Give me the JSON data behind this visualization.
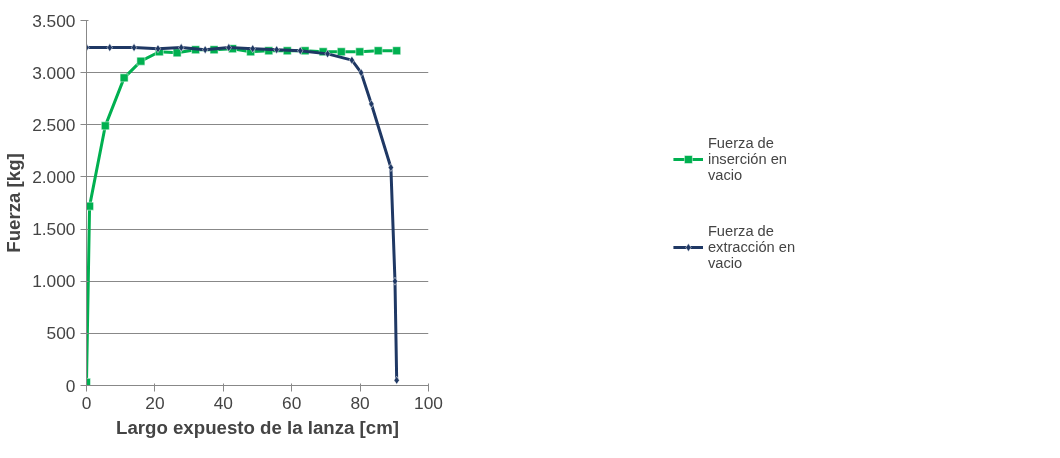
{
  "chart_data": {
    "type": "line",
    "xlabel": "Largo expuesto de la lanza [cm]",
    "ylabel": "Fuerza [kg]",
    "xlim": [
      0,
      100
    ],
    "xticks": [
      0,
      20,
      40,
      60,
      80,
      100
    ],
    "ylim": [
      0,
      3500
    ],
    "yticks": [
      {
        "value": 0,
        "label": "0"
      },
      {
        "value": 500,
        "label": "500"
      },
      {
        "value": 1000,
        "label": "1.000"
      },
      {
        "value": 1500,
        "label": "1.500"
      },
      {
        "value": 2000,
        "label": "2.000"
      },
      {
        "value": 2500,
        "label": "2.500"
      },
      {
        "value": 3000,
        "label": "3.000"
      },
      {
        "value": 3500,
        "label": "3.500"
      }
    ],
    "grid": "y",
    "legend": "right",
    "series": [
      {
        "name": "Fuerza de inserción en vacio",
        "color": "#00b050",
        "marker": "square",
        "x": [
          0,
          0.9,
          5.5,
          11,
          15.9,
          21.3,
          26.5,
          31.9,
          37.3,
          42.7,
          48,
          53.3,
          58.7,
          63.9,
          69.2,
          74.5,
          79.9,
          85.3,
          90.7
        ],
        "values": [
          30,
          1720,
          2490,
          2950,
          3110,
          3200,
          3190,
          3220,
          3220,
          3230,
          3200,
          3210,
          3210,
          3210,
          3200,
          3200,
          3200,
          3210,
          3210
        ]
      },
      {
        "name": "Fuerza de extracción en vacio",
        "color": "#1f3864",
        "marker": "diamond",
        "x": [
          0,
          6.8,
          13.9,
          20.9,
          27.7,
          34.7,
          41.6,
          48.6,
          55.6,
          62.5,
          70.5,
          77.6,
          80.3,
          83.3,
          89.0,
          90.2,
          90.7
        ],
        "values": [
          3240,
          3240,
          3240,
          3230,
          3240,
          3220,
          3240,
          3230,
          3220,
          3210,
          3180,
          3120,
          3000,
          2700,
          2090,
          1000,
          50
        ]
      }
    ]
  }
}
